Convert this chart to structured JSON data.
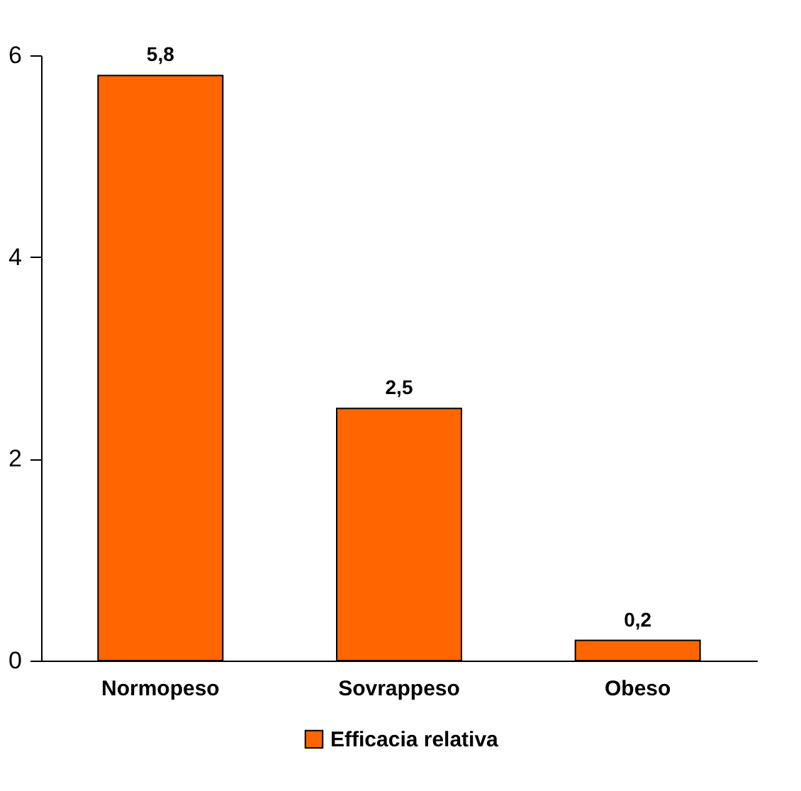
{
  "chart_data": {
    "type": "bar",
    "categories": [
      "Normopeso",
      "Sovrappeso",
      "Obeso"
    ],
    "series": [
      {
        "name": "Efficacia relativa",
        "color": "#ff6600",
        "values": [
          5.8,
          2.5,
          0.2
        ],
        "value_labels": [
          "5,8",
          "2,5",
          "0,2"
        ]
      }
    ],
    "ylim": [
      0,
      6
    ],
    "yticks": [
      0,
      2,
      4,
      6
    ],
    "grid": false,
    "legend": "bottom"
  }
}
